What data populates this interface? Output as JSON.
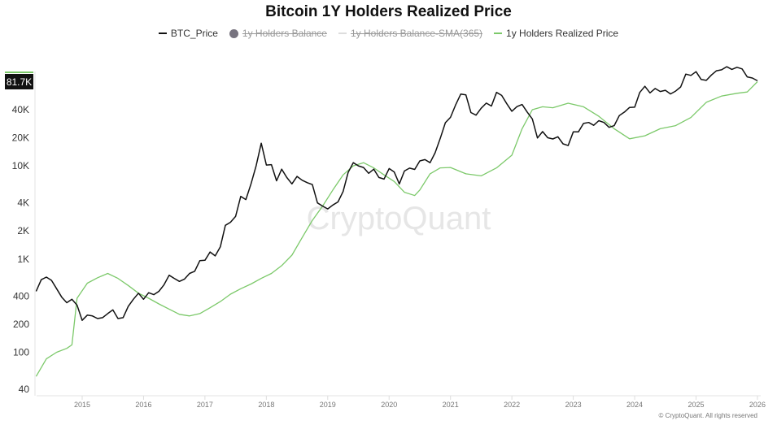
{
  "chart_data": {
    "type": "line",
    "title": "Bitcoin 1Y Holders Realized Price",
    "yscale": "log",
    "ylim": [
      40,
      130000
    ],
    "xlim": [
      "2014-04",
      "2026-02"
    ],
    "grid": false,
    "legend_placement": "top-center",
    "y_ticks": [
      {
        "v": 40,
        "label": "40"
      },
      {
        "v": 100,
        "label": "100"
      },
      {
        "v": 200,
        "label": "200"
      },
      {
        "v": 400,
        "label": "400"
      },
      {
        "v": 1000,
        "label": "1K"
      },
      {
        "v": 2000,
        "label": "2K"
      },
      {
        "v": 4000,
        "label": "4K"
      },
      {
        "v": 10000,
        "label": "10K"
      },
      {
        "v": 20000,
        "label": "20K"
      },
      {
        "v": 40000,
        "label": "40K"
      }
    ],
    "x_ticks": [
      "2015",
      "2016",
      "2017",
      "2018",
      "2019",
      "2020",
      "2021",
      "2022",
      "2023",
      "2024",
      "2025",
      "2026"
    ],
    "current_value_label": "81.7K",
    "legend": [
      {
        "name": "BTC_Price",
        "color": "#111111",
        "marker": "line",
        "hidden": false
      },
      {
        "name": "1y Holders Balance",
        "color": "#77737f",
        "marker": "circle",
        "hidden": true
      },
      {
        "name": "1y Holders Balance-SMA(365)",
        "color": "#cccccc",
        "marker": "line",
        "hidden": true
      },
      {
        "name": "1y Holders Realized Price",
        "color": "#7cc96a",
        "marker": "line",
        "hidden": false
      }
    ],
    "series": [
      {
        "name": "BTC_Price",
        "color": "#111111",
        "dates": [
          "2014-04",
          "2014-05",
          "2014-06",
          "2014-07",
          "2014-08",
          "2014-09",
          "2014-10",
          "2014-11",
          "2014-12",
          "2015-01",
          "2015-02",
          "2015-03",
          "2015-04",
          "2015-05",
          "2015-06",
          "2015-07",
          "2015-08",
          "2015-09",
          "2015-10",
          "2015-11",
          "2015-12",
          "2016-01",
          "2016-02",
          "2016-03",
          "2016-04",
          "2016-05",
          "2016-06",
          "2016-07",
          "2016-08",
          "2016-09",
          "2016-10",
          "2016-11",
          "2016-12",
          "2017-01",
          "2017-02",
          "2017-03",
          "2017-04",
          "2017-05",
          "2017-06",
          "2017-07",
          "2017-08",
          "2017-09",
          "2017-10",
          "2017-11",
          "2017-12",
          "2018-01",
          "2018-02",
          "2018-03",
          "2018-04",
          "2018-05",
          "2018-06",
          "2018-07",
          "2018-08",
          "2018-09",
          "2018-10",
          "2018-11",
          "2018-12",
          "2019-01",
          "2019-02",
          "2019-03",
          "2019-04",
          "2019-05",
          "2019-06",
          "2019-07",
          "2019-08",
          "2019-09",
          "2019-10",
          "2019-11",
          "2019-12",
          "2020-01",
          "2020-02",
          "2020-03",
          "2020-04",
          "2020-05",
          "2020-06",
          "2020-07",
          "2020-08",
          "2020-09",
          "2020-10",
          "2020-11",
          "2020-12",
          "2021-01",
          "2021-02",
          "2021-03",
          "2021-04",
          "2021-05",
          "2021-06",
          "2021-07",
          "2021-08",
          "2021-09",
          "2021-10",
          "2021-11",
          "2021-12",
          "2022-01",
          "2022-02",
          "2022-03",
          "2022-04",
          "2022-05",
          "2022-06",
          "2022-07",
          "2022-08",
          "2022-09",
          "2022-10",
          "2022-11",
          "2022-12",
          "2023-01",
          "2023-02",
          "2023-03",
          "2023-04",
          "2023-05",
          "2023-06",
          "2023-07",
          "2023-08",
          "2023-09",
          "2023-10",
          "2023-11",
          "2023-12",
          "2024-01",
          "2024-02",
          "2024-03",
          "2024-04",
          "2024-05",
          "2024-06",
          "2024-07",
          "2024-08",
          "2024-09",
          "2024-10",
          "2024-11",
          "2024-12",
          "2025-01",
          "2025-02",
          "2025-03",
          "2025-04",
          "2025-05",
          "2025-06",
          "2025-07",
          "2025-08",
          "2025-09",
          "2025-10",
          "2025-11",
          "2025-12",
          "2026-01"
        ],
        "values": [
          450,
          600,
          640,
          590,
          480,
          390,
          340,
          370,
          320,
          220,
          250,
          245,
          230,
          235,
          260,
          285,
          230,
          235,
          310,
          370,
          430,
          370,
          435,
          415,
          450,
          530,
          670,
          620,
          575,
          610,
          700,
          740,
          960,
          970,
          1190,
          1080,
          1350,
          2300,
          2480,
          2870,
          4700,
          4340,
          6400,
          10000,
          17500,
          10200,
          10300,
          6900,
          9200,
          7500,
          6400,
          7700,
          7000,
          6600,
          6300,
          4000,
          3700,
          3450,
          3800,
          4100,
          5300,
          8500,
          10800,
          10000,
          9600,
          8300,
          9200,
          7500,
          7200,
          9350,
          8600,
          6400,
          8800,
          9450,
          9150,
          11300,
          11650,
          10800,
          13800,
          19700,
          29000,
          33100,
          45000,
          58800,
          57700,
          37300,
          35000,
          41500,
          47100,
          43800,
          61300,
          57000,
          46300,
          38500,
          43200,
          45500,
          37700,
          31800,
          19900,
          23300,
          20000,
          19400,
          20500,
          17200,
          16500,
          23100,
          23100,
          28500,
          29200,
          27200,
          30500,
          29200,
          25900,
          27000,
          34600,
          37700,
          42300,
          42600,
          61200,
          71300,
          60600,
          67500,
          62700,
          64600,
          59000,
          63300,
          70200,
          96400,
          93400,
          102400,
          84400,
          82500,
          94200,
          104600,
          107100,
          115700,
          108200,
          114000,
          109500,
          90000,
          87500,
          81700
        ]
      },
      {
        "name": "1y Holders Realized Price",
        "color": "#7cc96a",
        "dates": [
          "2014-04",
          "2014-06",
          "2014-08",
          "2014-10",
          "2014-11",
          "2014-12",
          "2015-02",
          "2015-04",
          "2015-06",
          "2015-08",
          "2015-10",
          "2015-12",
          "2016-02",
          "2016-04",
          "2016-06",
          "2016-08",
          "2016-10",
          "2016-12",
          "2017-02",
          "2017-04",
          "2017-06",
          "2017-08",
          "2017-10",
          "2017-12",
          "2018-02",
          "2018-04",
          "2018-06",
          "2018-08",
          "2018-10",
          "2018-12",
          "2019-02",
          "2019-04",
          "2019-06",
          "2019-08",
          "2019-10",
          "2019-12",
          "2020-02",
          "2020-04",
          "2020-06",
          "2020-07",
          "2020-09",
          "2020-11",
          "2021-01",
          "2021-04",
          "2021-07",
          "2021-10",
          "2022-01",
          "2022-03",
          "2022-05",
          "2022-07",
          "2022-09",
          "2022-12",
          "2023-03",
          "2023-06",
          "2023-09",
          "2023-12",
          "2024-03",
          "2024-06",
          "2024-09",
          "2024-12",
          "2025-03",
          "2025-06",
          "2025-09",
          "2025-11",
          "2026-01"
        ],
        "values": [
          55,
          85,
          100,
          110,
          120,
          380,
          550,
          630,
          700,
          620,
          520,
          430,
          380,
          330,
          290,
          255,
          245,
          260,
          300,
          350,
          420,
          480,
          540,
          620,
          700,
          850,
          1100,
          1700,
          2600,
          3700,
          5500,
          8000,
          10000,
          10800,
          9500,
          8000,
          6800,
          5200,
          4800,
          5500,
          8200,
          9500,
          9600,
          8200,
          7800,
          9500,
          13000,
          25000,
          40000,
          43000,
          42000,
          47000,
          43000,
          34000,
          25000,
          19500,
          21000,
          25000,
          27000,
          33000,
          48000,
          56000,
          60000,
          62000,
          80000
        ]
      }
    ]
  },
  "watermark": "CryptoQuant",
  "credit": "© CryptoQuant. All rights reserved"
}
